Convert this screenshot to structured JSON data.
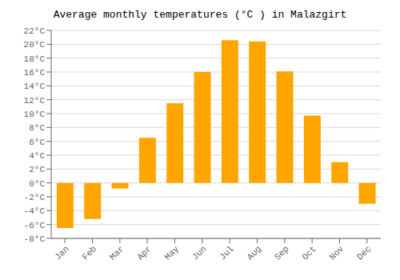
{
  "chart_data": {
    "type": "bar",
    "title": "Average monthly temperatures (°C ) in Malazgirt",
    "categories": [
      "Jan",
      "Feb",
      "Mar",
      "Apr",
      "May",
      "Jun",
      "Jul",
      "Aug",
      "Sep",
      "Oct",
      "Nov",
      "Dec"
    ],
    "values": [
      -6.5,
      -5.2,
      -0.8,
      6.5,
      11.5,
      16.0,
      20.6,
      20.4,
      16.1,
      9.7,
      3.0,
      -3.0
    ],
    "color": "#FFA500",
    "ylim": [
      -8,
      22
    ],
    "yticks": [
      {
        "value": -8,
        "label": "-8°C"
      },
      {
        "value": -6,
        "label": "-6°C"
      },
      {
        "value": -4,
        "label": "-4°C"
      },
      {
        "value": -2,
        "label": "-2°C"
      },
      {
        "value": 0,
        "label": "0°C"
      },
      {
        "value": 2,
        "label": "2°C"
      },
      {
        "value": 4,
        "label": "4°C"
      },
      {
        "value": 6,
        "label": "6°C"
      },
      {
        "value": 8,
        "label": "8°C"
      },
      {
        "value": 10,
        "label": "10°C"
      },
      {
        "value": 12,
        "label": "12°C"
      },
      {
        "value": 14,
        "label": "14°C"
      },
      {
        "value": 16,
        "label": "16°C"
      },
      {
        "value": 18,
        "label": "18°C"
      },
      {
        "value": 20,
        "label": "20°C"
      },
      {
        "value": 22,
        "label": "22°C"
      }
    ],
    "grid": true
  }
}
